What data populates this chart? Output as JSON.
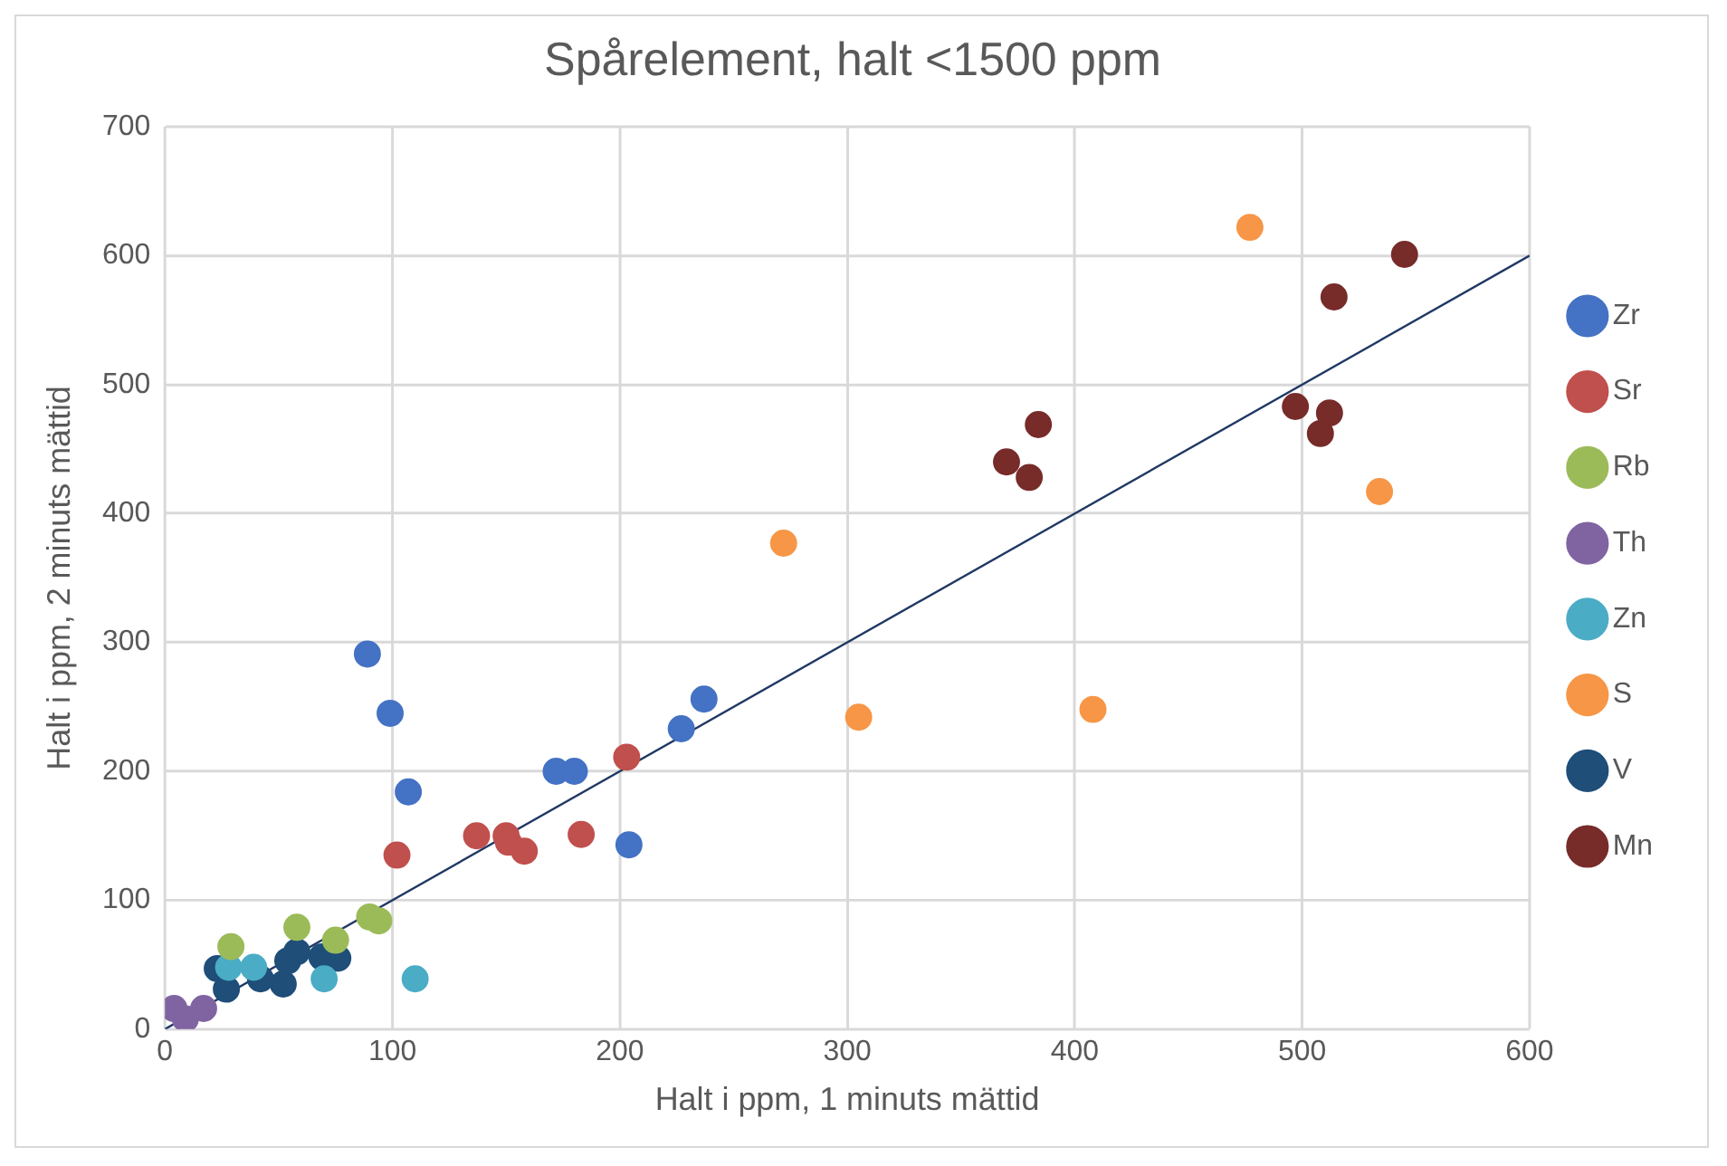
{
  "chart_data": {
    "type": "scatter",
    "title": "Spårelement, halt <1500 ppm",
    "xlabel": "Halt i ppm, 1 minuts mättid",
    "ylabel": "Halt i ppm, 2 minuts mättid",
    "xlim": [
      0,
      600
    ],
    "ylim": [
      0,
      700
    ],
    "xticks": [
      0,
      100,
      200,
      300,
      400,
      500,
      600
    ],
    "yticks": [
      0,
      100,
      200,
      300,
      400,
      500,
      600,
      700
    ],
    "grid": true,
    "legend": "right",
    "marker": "circle",
    "series": [
      {
        "name": "Zr",
        "color": "#4472c4",
        "x": [
          89,
          99,
          107,
          172,
          180,
          204,
          227,
          237
        ],
        "values": [
          291,
          245,
          184,
          200,
          200,
          143,
          233,
          256
        ]
      },
      {
        "name": "Sr",
        "color": "#c0504d",
        "x": [
          102,
          137,
          150,
          151,
          158,
          183,
          203
        ],
        "values": [
          135,
          150,
          150,
          145,
          138,
          151,
          211
        ]
      },
      {
        "name": "Rb",
        "color": "#9bbb59",
        "x": [
          29,
          58,
          75,
          90,
          94
        ],
        "values": [
          64,
          79,
          69,
          87,
          84
        ]
      },
      {
        "name": "Th",
        "color": "#8064a2",
        "x": [
          4,
          9,
          17
        ],
        "values": [
          16,
          8,
          16
        ]
      },
      {
        "name": "Zn",
        "color": "#4bacc6",
        "x": [
          28,
          39,
          70,
          110
        ],
        "values": [
          48,
          48,
          39,
          39
        ]
      },
      {
        "name": "S",
        "color": "#f79646",
        "x": [
          272,
          305,
          408,
          477,
          534
        ],
        "values": [
          377,
          242,
          248,
          622,
          417
        ]
      },
      {
        "name": "V",
        "color": "#1f4e79",
        "x": [
          23,
          27,
          42,
          52,
          54,
          58,
          69,
          76
        ],
        "values": [
          47,
          31,
          39,
          35,
          53,
          60,
          56,
          55
        ]
      },
      {
        "name": "Mn",
        "color": "#772c2a",
        "x": [
          370,
          380,
          384,
          514,
          497,
          508,
          512,
          545
        ],
        "values": [
          440,
          428,
          469,
          568,
          483,
          462,
          478,
          601
        ]
      },
      {
        "type": "line",
        "color": "#203864",
        "marker": "none",
        "x": [
          0,
          600
        ],
        "values": [
          0,
          600
        ]
      }
    ]
  }
}
